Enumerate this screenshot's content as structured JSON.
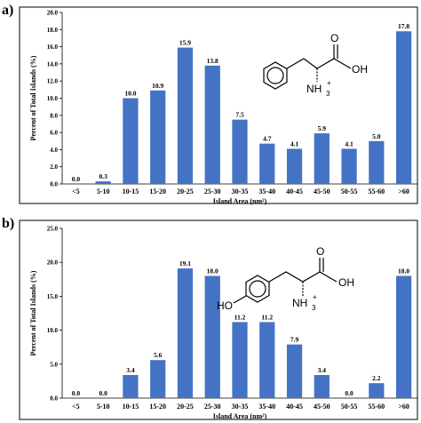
{
  "chart_data": [
    {
      "type": "bar",
      "panel_label": "a)",
      "categories": [
        "<5",
        "5-10",
        "10-15",
        "15-20",
        "20-25",
        "25-30",
        "30-35",
        "35-40",
        "40-45",
        "45-50",
        "50-55",
        "55-60",
        ">60"
      ],
      "values": [
        0.0,
        0.3,
        10.0,
        10.9,
        15.9,
        13.8,
        7.5,
        4.7,
        4.1,
        5.9,
        4.1,
        5.0,
        17.8
      ],
      "data_labels": [
        "0.0",
        "0.3",
        "10.0",
        "10.9",
        "15.9",
        "13.8",
        "7.5",
        "4.7",
        "4.1",
        "5.9",
        "4.1",
        "5.0",
        "17.8"
      ],
      "ylim": [
        0,
        20
      ],
      "yticks": [
        "0.0",
        "2.0",
        "4.0",
        "6.0",
        "8.0",
        "10.0",
        "12.0",
        "14.0",
        "16.0",
        "18.0",
        "20.0"
      ],
      "xlabel": "Island Area (nm²)",
      "ylabel": "Percent of Total Islands (%)",
      "grid": false,
      "bar_color": "#4472c4",
      "molecule": {
        "name": "phenylalanine",
        "acid_label": "OH",
        "oxygen_label": "O",
        "amine_label": "NH",
        "amine_subscript": "3",
        "amine_charge": "+"
      }
    },
    {
      "type": "bar",
      "panel_label": "b)",
      "categories": [
        "<5",
        "5-10",
        "10-15",
        "15-20",
        "20-25",
        "25-30",
        "30-35",
        "35-40",
        "40-45",
        "45-50",
        "50-55",
        "55-60",
        ">60"
      ],
      "values": [
        0.0,
        0.0,
        3.4,
        5.6,
        19.1,
        18.0,
        11.2,
        11.2,
        7.9,
        3.4,
        0.0,
        2.2,
        18.0
      ],
      "data_labels": [
        "0.0",
        "0.0",
        "3.4",
        "5.6",
        "19.1",
        "18.0",
        "11.2",
        "11.2",
        "7.9",
        "3.4",
        "0.0",
        "2.2",
        "18.0"
      ],
      "ylim": [
        0,
        25
      ],
      "yticks": [
        "0.0",
        "5.0",
        "10.0",
        "15.0",
        "20.0",
        "25.0"
      ],
      "xlabel": "Island Area (nm²)",
      "ylabel": "Percent of Total Islands (%)",
      "grid": false,
      "bar_color": "#4472c4",
      "molecule": {
        "name": "tyrosine",
        "hydroxyl_label": "HO",
        "acid_label": "OH",
        "oxygen_label": "O",
        "amine_label": "NH",
        "amine_subscript": "3",
        "amine_charge": "+"
      }
    }
  ]
}
